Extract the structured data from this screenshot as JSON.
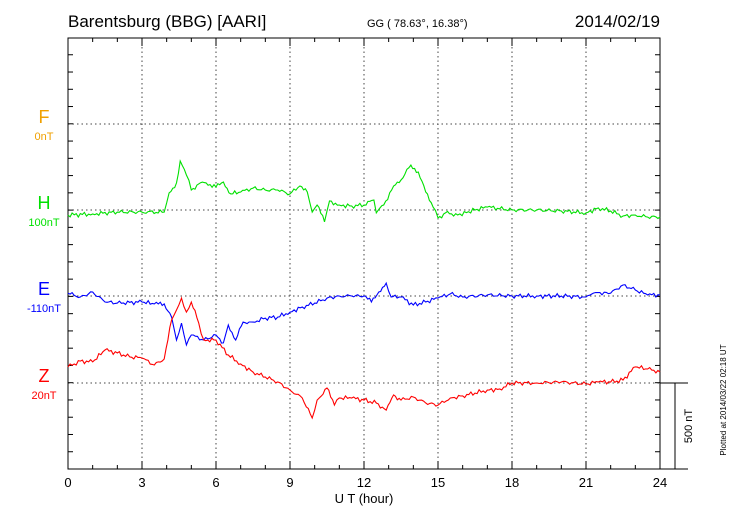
{
  "header": {
    "station": "Barentsburg (BBG)  [AARI]",
    "coords": "GG ( 78.63°,  16.38°)",
    "date": "2014/02/19"
  },
  "footer": {
    "plotted": "Plotted at 2014/03/22 02:18 UT",
    "scale_label": "500 nT"
  },
  "chart_data": {
    "type": "line",
    "title": "Barentsburg (BBG)  [AARI]",
    "xlabel": "U T (hour)",
    "xlim": [
      0,
      24
    ],
    "xticks": [
      "0",
      "3",
      "6",
      "9",
      "12",
      "15",
      "18",
      "21",
      "24"
    ],
    "grid": true,
    "scale_nT": 500,
    "series": [
      {
        "name": "F",
        "baseline_label": "0nT",
        "color": "#f0a000",
        "points": []
      },
      {
        "name": "H",
        "baseline_label": "100nT",
        "color": "#00e000",
        "points": [
          [
            0,
            -29
          ],
          [
            1,
            -23
          ],
          [
            2,
            -12
          ],
          [
            3,
            -12
          ],
          [
            3.9,
            -12
          ],
          [
            4.1,
            99
          ],
          [
            4.4,
            157
          ],
          [
            4.55,
            284
          ],
          [
            4.8,
            203
          ],
          [
            5.0,
            116
          ],
          [
            5.3,
            151
          ],
          [
            5.6,
            157
          ],
          [
            6.0,
            133
          ],
          [
            6.3,
            162
          ],
          [
            6.6,
            93
          ],
          [
            7,
            104
          ],
          [
            7.5,
            127
          ],
          [
            8,
            116
          ],
          [
            8.5,
            116
          ],
          [
            9,
            93
          ],
          [
            9.4,
            139
          ],
          [
            9.7,
            104
          ],
          [
            9.9,
            -12
          ],
          [
            10.1,
            29
          ],
          [
            10.4,
            -69
          ],
          [
            10.6,
            52
          ],
          [
            11,
            29
          ],
          [
            11.5,
            23
          ],
          [
            12,
            29
          ],
          [
            12.4,
            58
          ],
          [
            12.5,
            -17
          ],
          [
            12.8,
            29
          ],
          [
            13.2,
            139
          ],
          [
            13.5,
            174
          ],
          [
            13.9,
            261
          ],
          [
            14.2,
            220
          ],
          [
            14.5,
            104
          ],
          [
            14.8,
            17
          ],
          [
            15,
            -46
          ],
          [
            15.3,
            -17
          ],
          [
            15.8,
            -29
          ],
          [
            16.5,
            0
          ],
          [
            17,
            17
          ],
          [
            18,
            0
          ],
          [
            19,
            0
          ],
          [
            20,
            -6
          ],
          [
            21,
            -17
          ],
          [
            21.5,
            12
          ],
          [
            22,
            -6
          ],
          [
            22.5,
            -35
          ],
          [
            23,
            -29
          ],
          [
            23.5,
            -41
          ],
          [
            24,
            -41
          ]
        ]
      },
      {
        "name": "E",
        "baseline_label": "-110nT",
        "color": "#0000ff",
        "points": [
          [
            0,
            17
          ],
          [
            0.5,
            -6
          ],
          [
            1,
            23
          ],
          [
            1.5,
            -35
          ],
          [
            2,
            -41
          ],
          [
            3,
            -35
          ],
          [
            3.5,
            -46
          ],
          [
            3.9,
            -46
          ],
          [
            4.2,
            -122
          ],
          [
            4.4,
            -255
          ],
          [
            4.6,
            -157
          ],
          [
            4.8,
            -284
          ],
          [
            5,
            -226
          ],
          [
            5.5,
            -255
          ],
          [
            6,
            -226
          ],
          [
            6.3,
            -272
          ],
          [
            6.5,
            -168
          ],
          [
            6.8,
            -255
          ],
          [
            7.1,
            -151
          ],
          [
            7.5,
            -151
          ],
          [
            8,
            -128
          ],
          [
            8.5,
            -122
          ],
          [
            9,
            -93
          ],
          [
            9.5,
            -64
          ],
          [
            10,
            -41
          ],
          [
            10.5,
            -12
          ],
          [
            11,
            0
          ],
          [
            11.5,
            0
          ],
          [
            12,
            0
          ],
          [
            12.3,
            -35
          ],
          [
            12.6,
            23
          ],
          [
            12.9,
            75
          ],
          [
            13.1,
            -6
          ],
          [
            13.5,
            -6
          ],
          [
            14,
            -52
          ],
          [
            14.5,
            -35
          ],
          [
            15,
            -12
          ],
          [
            15.5,
            12
          ],
          [
            16,
            -6
          ],
          [
            17,
            6
          ],
          [
            18,
            0
          ],
          [
            19,
            0
          ],
          [
            20,
            0
          ],
          [
            21,
            -6
          ],
          [
            21.3,
            17
          ],
          [
            22,
            17
          ],
          [
            22.5,
            64
          ],
          [
            23,
            35
          ],
          [
            23.5,
            6
          ],
          [
            24,
            6
          ]
        ]
      },
      {
        "name": "Z",
        "baseline_label": "20nT",
        "color": "#ff0000",
        "points": [
          [
            0,
            93
          ],
          [
            0.5,
            127
          ],
          [
            1,
            122
          ],
          [
            1.5,
            191
          ],
          [
            2,
            174
          ],
          [
            2.5,
            151
          ],
          [
            3,
            145
          ],
          [
            3.5,
            104
          ],
          [
            3.9,
            139
          ],
          [
            4.2,
            365
          ],
          [
            4.4,
            423
          ],
          [
            4.6,
            492
          ],
          [
            4.8,
            411
          ],
          [
            5,
            469
          ],
          [
            5.3,
            348
          ],
          [
            5.5,
            249
          ],
          [
            6,
            249
          ],
          [
            6.5,
            162
          ],
          [
            7,
            110
          ],
          [
            7.5,
            64
          ],
          [
            8,
            35
          ],
          [
            8.5,
            6
          ],
          [
            9,
            -41
          ],
          [
            9.5,
            -87
          ],
          [
            9.9,
            -203
          ],
          [
            10.1,
            -99
          ],
          [
            10.5,
            -29
          ],
          [
            10.8,
            -128
          ],
          [
            11,
            -87
          ],
          [
            11.5,
            -87
          ],
          [
            12,
            -99
          ],
          [
            12.5,
            -116
          ],
          [
            12.9,
            -157
          ],
          [
            13.2,
            -69
          ],
          [
            13.5,
            -99
          ],
          [
            14,
            -81
          ],
          [
            14.5,
            -116
          ],
          [
            15,
            -128
          ],
          [
            15.5,
            -87
          ],
          [
            16,
            -75
          ],
          [
            17,
            -41
          ],
          [
            17.5,
            -35
          ],
          [
            18,
            0
          ],
          [
            19,
            0
          ],
          [
            20,
            6
          ],
          [
            21,
            -6
          ],
          [
            21.5,
            6
          ],
          [
            22,
            6
          ],
          [
            22.5,
            17
          ],
          [
            23,
            93
          ],
          [
            23.5,
            81
          ],
          [
            24,
            64
          ]
        ]
      }
    ]
  }
}
